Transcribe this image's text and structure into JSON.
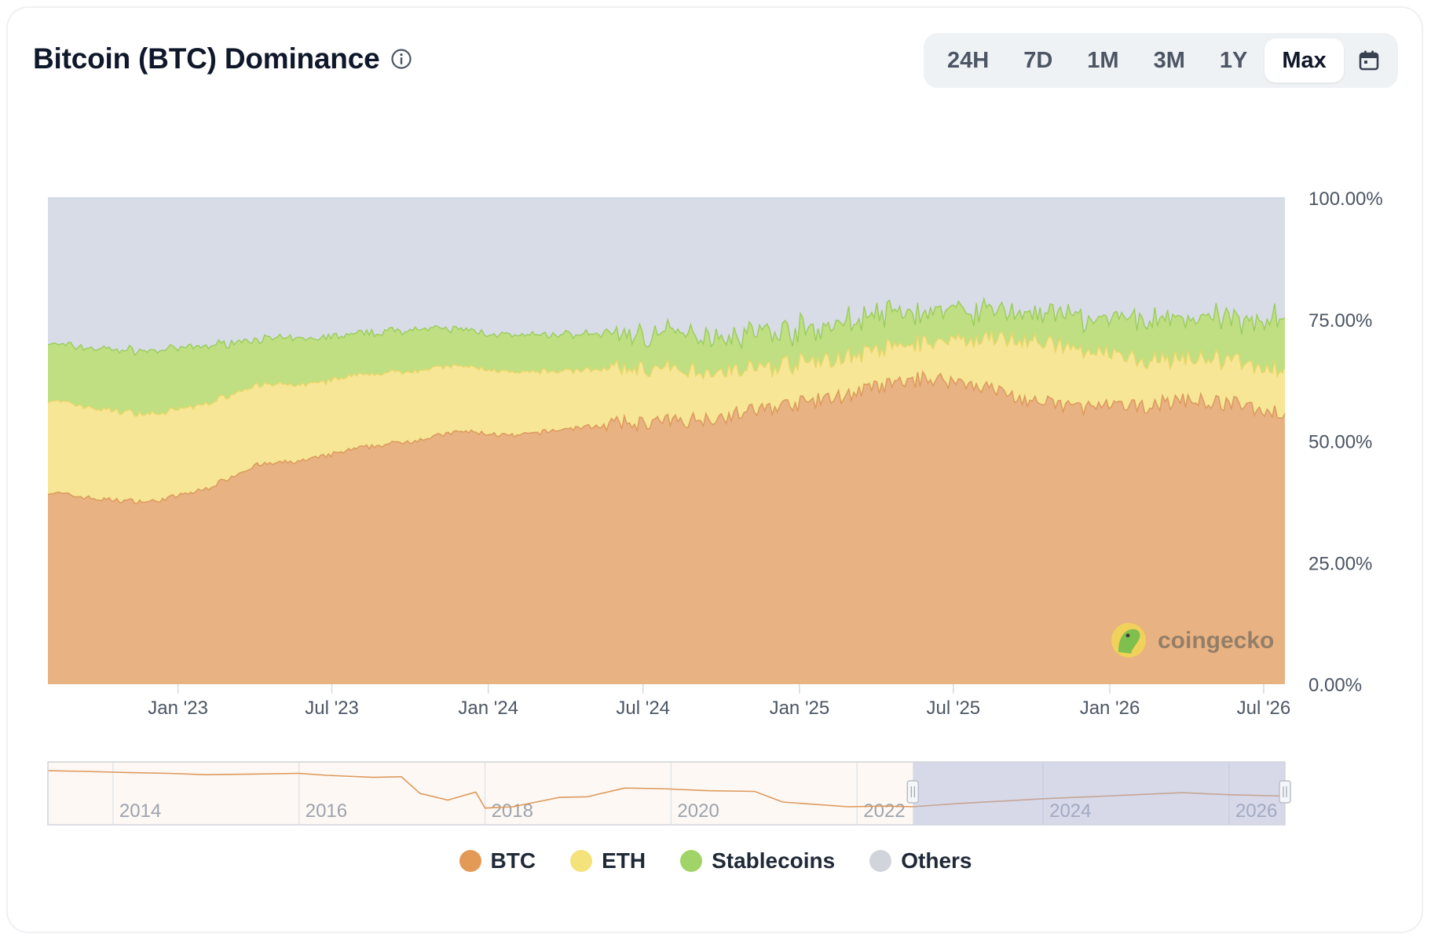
{
  "header": {
    "title": "Bitcoin (BTC) Dominance",
    "ranges": [
      "24H",
      "7D",
      "1M",
      "3M",
      "1Y",
      "Max"
    ],
    "active_range": "Max"
  },
  "watermark": "coingecko",
  "colors": {
    "btc": "#e9b283",
    "eth": "#f6e695",
    "stablecoins": "#bfdf82",
    "others": "#d7dce6",
    "btc_legend": "#e49a57",
    "eth_legend": "#f4e27a",
    "stablecoins_legend": "#a0d468",
    "others_legend": "#d1d5db"
  },
  "chart_data": {
    "type": "area",
    "stacked": true,
    "y_ticks": [
      "100.00%",
      "75.00%",
      "50.00%",
      "25.00%",
      "0.00%"
    ],
    "ylim": [
      0,
      100
    ],
    "x_ticks": [
      "Jan '23",
      "Jul '23",
      "Jan '24",
      "Jul '24",
      "Jan '25",
      "Jul '25",
      "Jan '26",
      "Jul '26"
    ],
    "x_tick_dates": [
      "2023-01-01",
      "2023-07-01",
      "2024-01-01",
      "2024-07-01",
      "2025-01-01",
      "2025-07-01",
      "2026-01-01",
      "2026-07-01"
    ],
    "x_dates": [
      "2022-08-01",
      "2022-10-01",
      "2022-12-01",
      "2023-02-01",
      "2023-04-01",
      "2023-06-01",
      "2023-08-01",
      "2023-10-01",
      "2023-12-01",
      "2024-02-01",
      "2024-04-01",
      "2024-06-01",
      "2024-08-01",
      "2024-10-01",
      "2024-12-01",
      "2025-02-01",
      "2025-04-01",
      "2025-06-01",
      "2025-08-01",
      "2025-10-01",
      "2025-12-01",
      "2026-02-01",
      "2026-04-01",
      "2026-06-01",
      "2026-07-26"
    ],
    "series": [
      {
        "name": "BTC",
        "values": [
          39.5,
          38.0,
          37.5,
          40.0,
          45.0,
          46.0,
          48.5,
          50.0,
          52.0,
          51.0,
          52.5,
          53.5,
          54.0,
          55.0,
          57.0,
          58.5,
          61.0,
          63.0,
          61.5,
          58.0,
          57.0,
          57.0,
          58.5,
          57.5,
          55.5
        ]
      },
      {
        "name": "ETH",
        "values": [
          19.0,
          18.5,
          18.0,
          17.5,
          16.5,
          15.5,
          15.0,
          14.5,
          13.5,
          13.0,
          12.0,
          11.5,
          10.5,
          9.5,
          8.5,
          8.0,
          7.5,
          7.5,
          9.5,
          12.5,
          11.5,
          9.5,
          8.5,
          9.0,
          9.0
        ]
      },
      {
        "name": "Stablecoins",
        "values": [
          11.5,
          12.5,
          13.0,
          12.0,
          9.5,
          9.5,
          8.5,
          8.5,
          7.5,
          7.5,
          7.5,
          7.0,
          7.5,
          7.5,
          7.0,
          7.0,
          7.5,
          6.0,
          6.0,
          6.0,
          6.5,
          8.5,
          8.5,
          8.5,
          11.5
        ]
      },
      {
        "name": "Others",
        "values": [
          30.0,
          31.0,
          31.5,
          30.5,
          29.0,
          29.0,
          28.0,
          27.0,
          27.0,
          28.5,
          28.0,
          28.0,
          28.0,
          28.0,
          27.5,
          26.5,
          24.0,
          23.5,
          23.0,
          23.5,
          25.0,
          25.0,
          24.5,
          25.0,
          24.0
        ]
      }
    ],
    "navigator": {
      "x_ticks": [
        "2014",
        "2016",
        "2018",
        "2020",
        "2022",
        "2024",
        "2026"
      ],
      "x_tick_years": [
        2014,
        2016,
        2018,
        2020,
        2022,
        2024,
        2026
      ],
      "x_range": [
        2013.3,
        2026.6
      ],
      "years": [
        2013.3,
        2013.7,
        2014.2,
        2014.6,
        2015.0,
        2015.5,
        2016.0,
        2016.3,
        2016.8,
        2017.1,
        2017.3,
        2017.6,
        2017.9,
        2018.0,
        2018.3,
        2018.8,
        2019.1,
        2019.5,
        2019.9,
        2020.4,
        2020.9,
        2021.2,
        2021.5,
        2021.9,
        2022.3,
        2022.6,
        2023.1,
        2023.5,
        2024.0,
        2024.5,
        2025.0,
        2025.5,
        2026.0,
        2026.6
      ],
      "btc_values": [
        94,
        93,
        91,
        90,
        88,
        89,
        90,
        87,
        84,
        85,
        60,
        50,
        62,
        38,
        40,
        54,
        55,
        68,
        67,
        64,
        63,
        47,
        44,
        40,
        41,
        40,
        45,
        48,
        52,
        55,
        58,
        61,
        58,
        56
      ],
      "selected_range": [
        2022.6,
        2026.6
      ]
    }
  },
  "legend": [
    {
      "label": "BTC",
      "color_key": "btc_legend"
    },
    {
      "label": "ETH",
      "color_key": "eth_legend"
    },
    {
      "label": "Stablecoins",
      "color_key": "stablecoins_legend"
    },
    {
      "label": "Others",
      "color_key": "others_legend"
    }
  ]
}
